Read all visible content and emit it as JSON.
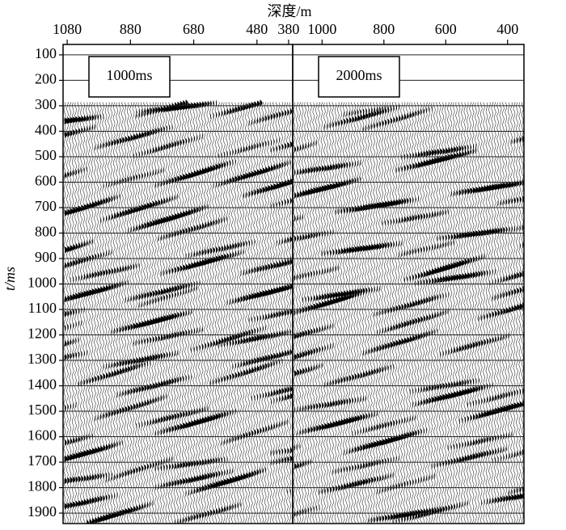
{
  "chart_data": [
    {
      "type": "seismic",
      "xlabel": "深度/m",
      "ylabel": "t/ms",
      "annotation": "1000ms",
      "xlim": [
        1093,
        367
      ],
      "xticks": [
        1080,
        880,
        680,
        480,
        380
      ],
      "ylim": [
        59,
        1941
      ],
      "yticks": [
        100,
        200,
        300,
        400,
        500,
        600,
        700,
        800,
        900,
        1000,
        1100,
        1200,
        1300,
        1400,
        1500,
        1600,
        1700,
        1800,
        1900
      ],
      "grid": true
    },
    {
      "type": "seismic",
      "annotation": "2000ms",
      "xlim": [
        1095,
        347
      ],
      "xticks": [
        1000,
        800,
        600,
        400
      ],
      "ylim": [
        59,
        1941
      ],
      "grid": true
    }
  ]
}
